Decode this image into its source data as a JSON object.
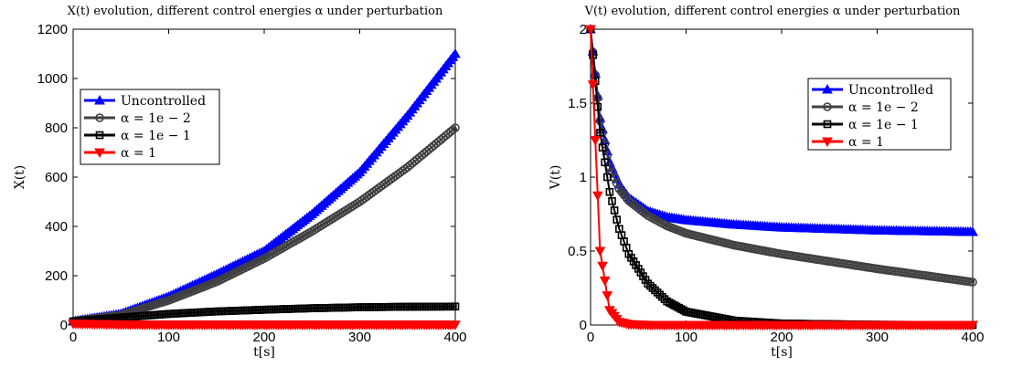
{
  "chart_data": [
    {
      "type": "line",
      "title": "X(t) evolution, different control energies α under perturbation",
      "xlabel": "t[s]",
      "ylabel": "X(t)",
      "xlim": [
        0,
        400
      ],
      "ylim": [
        0,
        1200
      ],
      "xticks": [
        0,
        100,
        200,
        300,
        400
      ],
      "yticks": [
        0,
        200,
        400,
        600,
        800,
        1000,
        1200
      ],
      "grid": false,
      "legend_position": "left",
      "legend": [
        "Uncontrolled",
        "α = 1e − 2",
        "α = 1e − 1",
        "α = 1"
      ],
      "x": [
        0,
        50,
        100,
        150,
        200,
        250,
        300,
        350,
        400
      ],
      "series": [
        {
          "name": "Uncontrolled",
          "color": "#0000ff",
          "marker": "triangle-up",
          "values": [
            15,
            45,
            115,
            205,
            300,
            450,
            620,
            850,
            1100
          ]
        },
        {
          "name": "α = 1e − 2",
          "color": "#404040",
          "marker": "circle",
          "values": [
            15,
            40,
            100,
            175,
            270,
            380,
            500,
            640,
            800
          ]
        },
        {
          "name": "α = 1e − 1",
          "color": "#000000",
          "marker": "square",
          "values": [
            15,
            30,
            45,
            55,
            62,
            68,
            72,
            74,
            75
          ]
        },
        {
          "name": "α = 1",
          "color": "#ff0000",
          "marker": "triangle-down",
          "values": [
            5,
            2,
            1,
            1,
            1,
            1,
            1,
            1,
            1
          ]
        }
      ]
    },
    {
      "type": "line",
      "title": "V(t) evolution, different control energies α under perturbation",
      "xlabel": "t[s]",
      "ylabel": "V(t)",
      "xlim": [
        0,
        400
      ],
      "ylim": [
        0,
        2
      ],
      "xticks": [
        0,
        100,
        200,
        300,
        400
      ],
      "yticks": [
        0,
        0.5,
        1,
        1.5,
        2
      ],
      "grid": false,
      "legend_position": "top-right",
      "legend": [
        "Uncontrolled",
        "α = 1e − 2",
        "α = 1e − 1",
        "α = 1"
      ],
      "x": [
        0,
        10,
        20,
        30,
        40,
        60,
        80,
        100,
        150,
        200,
        300,
        400
      ],
      "series": [
        {
          "name": "Uncontrolled",
          "color": "#0000ff",
          "marker": "triangle-up",
          "values": [
            2,
            1.4,
            1.1,
            0.95,
            0.86,
            0.77,
            0.73,
            0.71,
            0.68,
            0.66,
            0.64,
            0.63
          ]
        },
        {
          "name": "α = 1e − 2",
          "color": "#404040",
          "marker": "circle",
          "values": [
            2,
            1.38,
            1.07,
            0.92,
            0.84,
            0.74,
            0.67,
            0.62,
            0.54,
            0.48,
            0.38,
            0.29
          ]
        },
        {
          "name": "α = 1e − 1",
          "color": "#000000",
          "marker": "square",
          "values": [
            2,
            1.3,
            0.9,
            0.65,
            0.48,
            0.28,
            0.16,
            0.09,
            0.03,
            0.01,
            0.002,
            0.0
          ]
        },
        {
          "name": "α = 1",
          "color": "#ff0000",
          "marker": "triangle-down",
          "values": [
            2,
            0.5,
            0.1,
            0.02,
            0.005,
            0.0,
            0.0,
            0.0,
            0.0,
            0.0,
            0.0,
            0.0
          ]
        }
      ]
    }
  ]
}
